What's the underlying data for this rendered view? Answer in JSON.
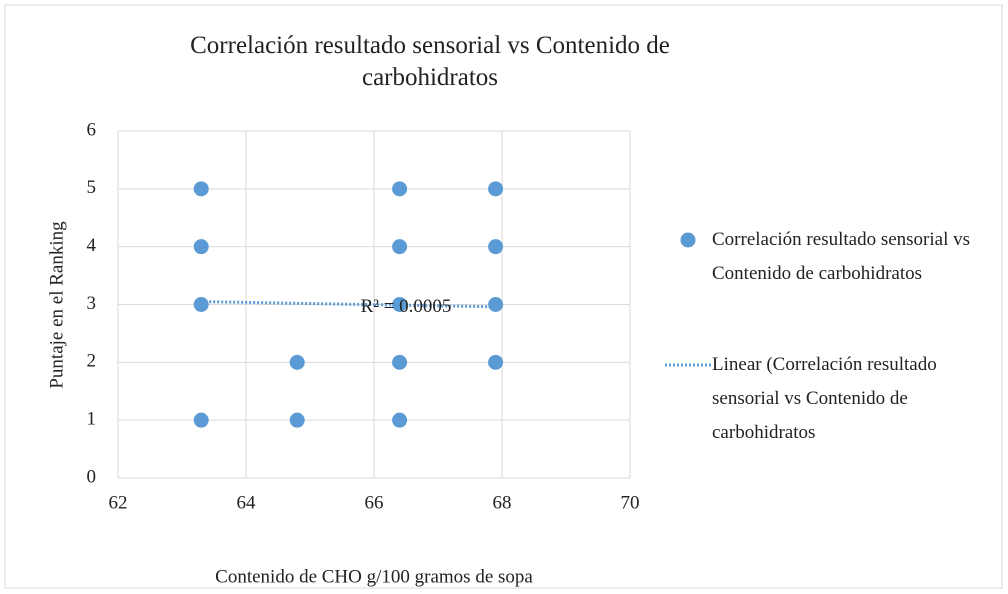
{
  "chart_data": {
    "type": "scatter",
    "title": "Correlación resultado sensorial vs Contenido de carbohidratos",
    "x_label": "Contenido de CHO g/100 gramos de sopa",
    "y_label": "Puntaje en el Ranking",
    "series": [
      {
        "name": "Correlación resultado sensorial vs Contenido de carbohidratos",
        "color": "#5b9bd5",
        "x": [
          63.3,
          63.3,
          63.3,
          63.3,
          64.8,
          64.8,
          66.4,
          66.4,
          66.4,
          66.4,
          66.4,
          67.9,
          67.9,
          67.9,
          67.9
        ],
        "values": [
          5,
          4,
          3,
          1,
          2,
          1,
          5,
          4,
          3,
          2,
          1,
          5,
          4,
          3,
          2
        ]
      }
    ],
    "trendline": {
      "name": "Linear (Correlación resultado sensorial vs Contenido de carbohidratos",
      "color": "#5b9bd5",
      "x": [
        63.3,
        67.9
      ],
      "values": [
        3.05,
        2.96
      ]
    },
    "annotation": "R² = 0.0005",
    "xlim": [
      62,
      70
    ],
    "xticks": [
      62,
      64,
      66,
      68,
      70
    ],
    "ylim": [
      0,
      6
    ],
    "yticks": [
      0,
      1,
      2,
      3,
      4,
      5,
      6
    ],
    "grid": true,
    "legend": "right"
  }
}
